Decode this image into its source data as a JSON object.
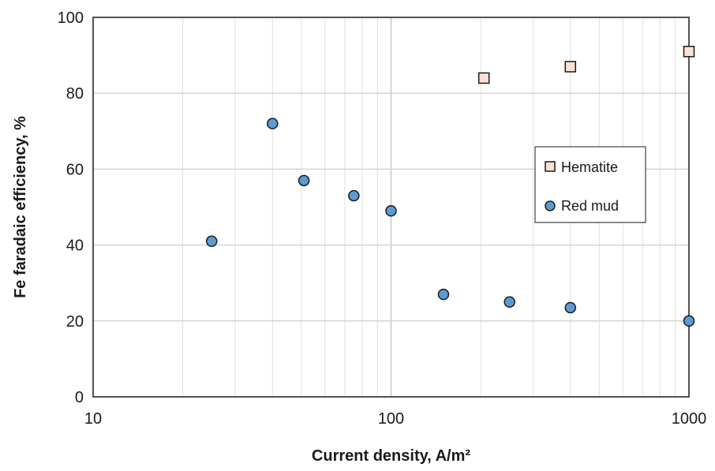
{
  "chart_data": {
    "type": "scatter",
    "title": "",
    "xlabel": "Current density, A/m²",
    "ylabel": "Fe faradaic efficiency, %",
    "xscale": "log",
    "xlim": [
      10,
      1000
    ],
    "ylim": [
      0,
      100
    ],
    "xticks": [
      10,
      100,
      1000
    ],
    "xtick_labels": [
      "10",
      "100",
      "1000"
    ],
    "yticks": [
      0,
      20,
      40,
      60,
      80,
      100
    ],
    "ytick_labels": [
      "0",
      "20",
      "40",
      "60",
      "80",
      "100"
    ],
    "grid": true,
    "legend_position": "center-right",
    "series": [
      {
        "name": "Hematite",
        "marker": "square",
        "color": "#f9e1d3",
        "edge_color": "#1a1a1a",
        "x": [
          205,
          400,
          1000
        ],
        "y": [
          84,
          87,
          91
        ]
      },
      {
        "name": "Red mud",
        "marker": "circle",
        "color": "#5b9bd5",
        "edge_color": "#1a1a1a",
        "x": [
          25,
          40,
          51,
          75,
          100,
          150,
          250,
          400,
          1000
        ],
        "y": [
          41,
          72,
          57,
          53,
          49,
          27,
          25,
          23.5,
          20
        ]
      }
    ]
  }
}
